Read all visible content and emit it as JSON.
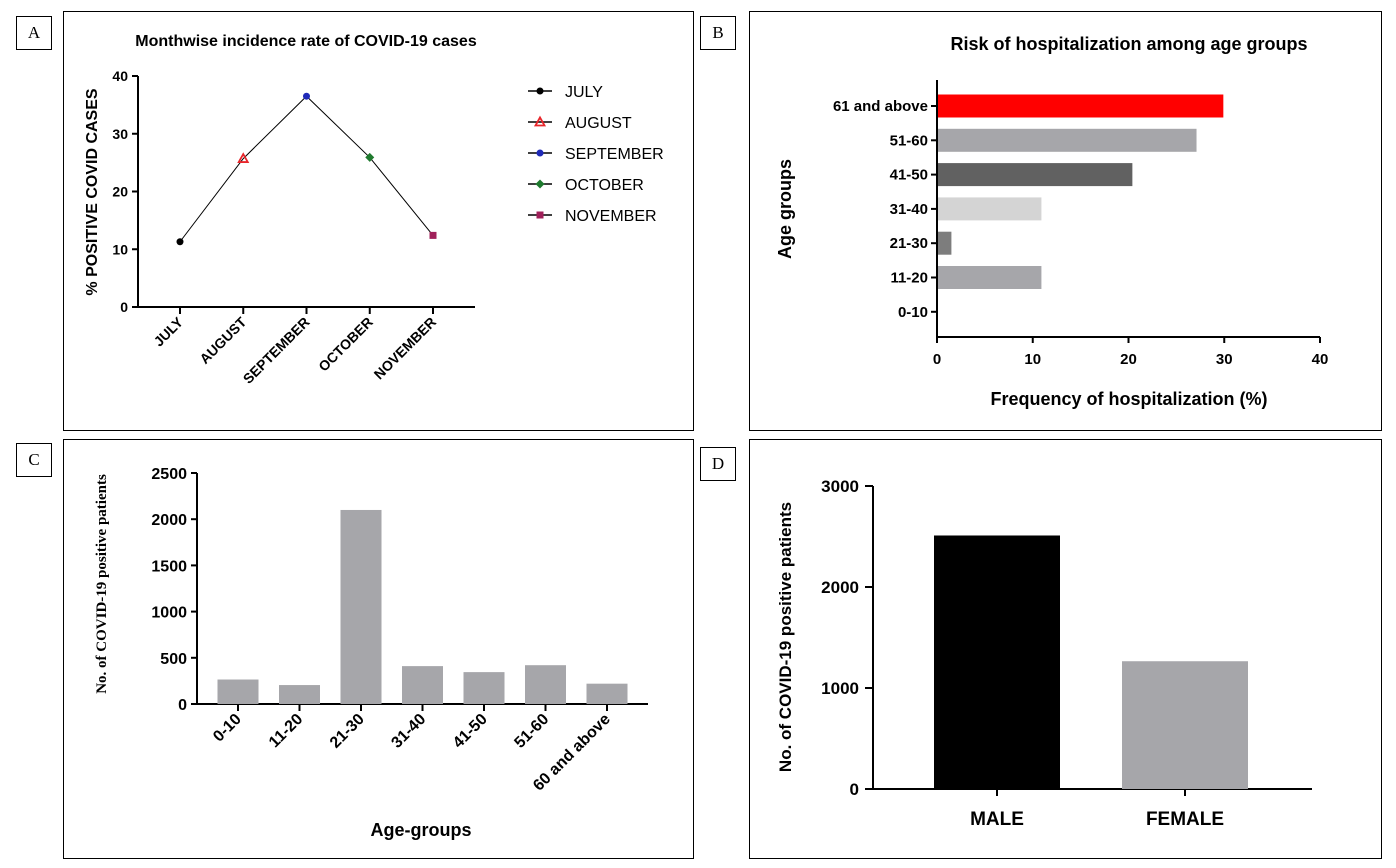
{
  "panels": {
    "a": {
      "letter": "A"
    },
    "b": {
      "letter": "B"
    },
    "c": {
      "letter": "C"
    },
    "d": {
      "letter": "D"
    }
  },
  "chart_data": [
    {
      "id": "A",
      "type": "line",
      "title": "Monthwise incidence rate of COVID-19 cases",
      "xlabel": "",
      "ylabel": "% POSITIVE COVID CASES",
      "categories": [
        "JULY",
        "AUGUST",
        "SEPTEMBER",
        "OCTOBER",
        "NOVEMBER"
      ],
      "values": [
        11.3,
        25.7,
        36.5,
        25.9,
        12.4
      ],
      "ylim": [
        0,
        40
      ],
      "yticks": [
        0,
        10,
        20,
        30,
        40
      ],
      "legend_position": "right",
      "legend": [
        {
          "label": "JULY",
          "marker": "circle",
          "color": "#000000"
        },
        {
          "label": "AUGUST",
          "marker": "triangle",
          "color": "#e8262b"
        },
        {
          "label": "SEPTEMBER",
          "marker": "circle",
          "color": "#1f2ab8"
        },
        {
          "label": "OCTOBER",
          "marker": "diamond",
          "color": "#1f7a2e"
        },
        {
          "label": "NOVEMBER",
          "marker": "square",
          "color": "#a0205a"
        }
      ],
      "grid": false
    },
    {
      "id": "B",
      "type": "bar",
      "orientation": "horizontal",
      "title": "Risk of hospitalization among age groups",
      "xlabel": "Frequency of hospitalization (%)",
      "ylabel": "Age groups",
      "categories": [
        "61 and above",
        "51-60",
        "41-50",
        "31-40",
        "21-30",
        "11-20",
        "0-10"
      ],
      "values": [
        29.8,
        27.0,
        20.3,
        10.8,
        1.4,
        10.8,
        0
      ],
      "colors": [
        "#ff0000",
        "#a6a6aa",
        "#616161",
        "#d4d4d4",
        "#7d7d7d",
        "#a6a6aa",
        "#a6a6aa"
      ],
      "xlim": [
        0,
        40
      ],
      "xticks": [
        0,
        10,
        20,
        30,
        40
      ],
      "grid": false
    },
    {
      "id": "C",
      "type": "bar",
      "title": "",
      "xlabel": "Age-groups",
      "ylabel": "No. of  COVID-19 positive patients",
      "categories": [
        "0-10",
        "11-20",
        "21-30",
        "31-40",
        "41-50",
        "51-60",
        "60 and above"
      ],
      "values": [
        265,
        205,
        2100,
        410,
        345,
        420,
        220
      ],
      "color": "#a6a6aa",
      "ylim": [
        0,
        2500
      ],
      "yticks": [
        0,
        500,
        1000,
        1500,
        2000,
        2500
      ],
      "grid": false
    },
    {
      "id": "D",
      "type": "bar",
      "title": "",
      "xlabel": "",
      "ylabel": "No. of COVID-19 positive patients",
      "categories": [
        "MALE",
        "FEMALE"
      ],
      "values": [
        2510,
        1265
      ],
      "colors": [
        "#000000",
        "#a6a6aa"
      ],
      "ylim": [
        0,
        3000
      ],
      "yticks": [
        0,
        1000,
        2000,
        3000
      ],
      "grid": false
    }
  ]
}
